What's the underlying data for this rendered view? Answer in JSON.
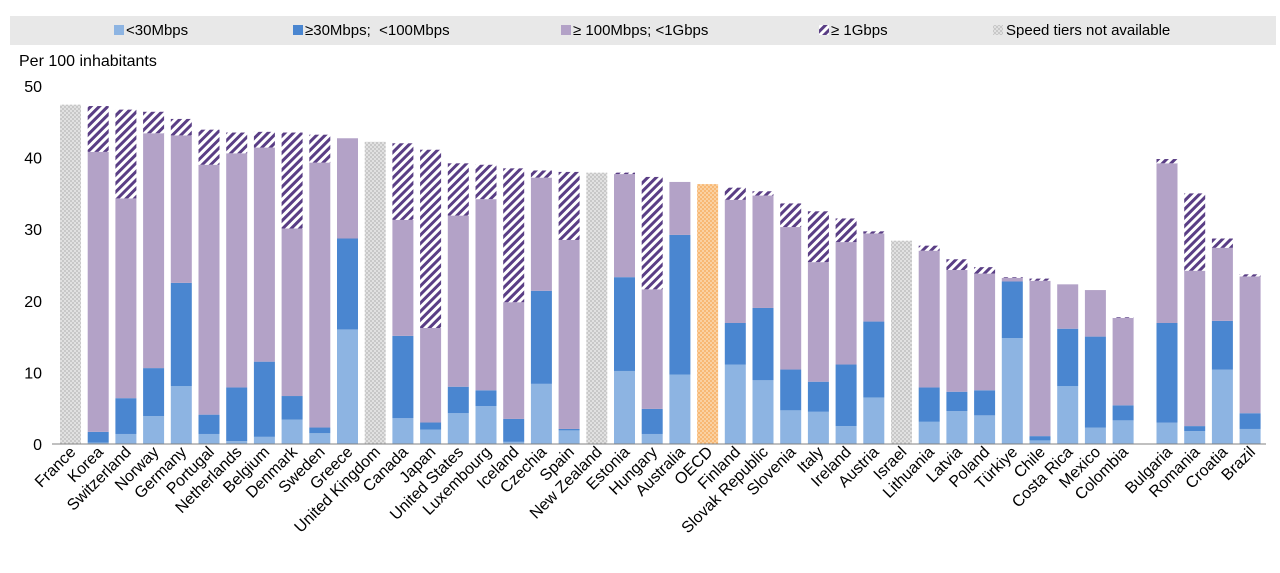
{
  "chart_data": {
    "type": "bar",
    "stacked": true,
    "unit_label": "Per 100 inhabitants",
    "ylim": [
      0,
      50
    ],
    "yticks": [
      0,
      10,
      20,
      30,
      40,
      50
    ],
    "grid": false,
    "legend_position": "top",
    "series": [
      {
        "name": "<30Mbps",
        "color": "#8DB4E2"
      },
      {
        "name": "≥30Mbps;  <100Mbps",
        "color": "#4A86D0"
      },
      {
        "name": "≥ 100Mbps; <1Gbps",
        "color": "#B3A2C7"
      },
      {
        "name": "≥ 1Gbps",
        "color": "#5A3E85",
        "pattern": "diagonal-hatch"
      },
      {
        "name": "Speed tiers not available",
        "color": "#B8B8B8",
        "pattern": "dots"
      }
    ],
    "categories": [
      {
        "name": "France",
        "values": [
          0,
          0,
          0,
          0
        ],
        "na": 47.4
      },
      {
        "name": "Korea",
        "values": [
          0.2,
          1.5,
          39.1,
          6.4
        ]
      },
      {
        "name": "Switzerland",
        "values": [
          1.4,
          5.0,
          27.9,
          12.4
        ]
      },
      {
        "name": "Norway",
        "values": [
          3.9,
          6.7,
          32.8,
          3.0
        ]
      },
      {
        "name": "Germany",
        "values": [
          8.1,
          14.4,
          20.6,
          2.3
        ]
      },
      {
        "name": "Portugal",
        "values": [
          1.4,
          2.7,
          34.9,
          4.9
        ]
      },
      {
        "name": "Netherlands",
        "values": [
          0.4,
          7.5,
          32.7,
          2.9
        ]
      },
      {
        "name": "Belgium",
        "values": [
          1.0,
          10.5,
          29.9,
          2.2
        ]
      },
      {
        "name": "Denmark",
        "values": [
          3.4,
          3.3,
          23.4,
          13.4
        ]
      },
      {
        "name": "Sweden",
        "values": [
          1.5,
          0.8,
          37.0,
          3.9
        ]
      },
      {
        "name": "Greece",
        "values": [
          16.0,
          12.7,
          14.0,
          0
        ]
      },
      {
        "name": "United Kingdom",
        "values": [
          0,
          0,
          0,
          0
        ],
        "na": 42.2
      },
      {
        "name": "Canada",
        "values": [
          3.6,
          11.5,
          16.2,
          10.7
        ]
      },
      {
        "name": "Japan",
        "values": [
          2.0,
          1.0,
          13.2,
          24.9
        ]
      },
      {
        "name": "United States",
        "values": [
          4.3,
          3.7,
          23.9,
          7.3
        ]
      },
      {
        "name": "Luxembourg",
        "values": [
          5.3,
          2.2,
          26.7,
          4.8
        ]
      },
      {
        "name": "Iceland",
        "values": [
          0.3,
          3.2,
          16.3,
          18.7
        ]
      },
      {
        "name": "Czechia",
        "values": [
          8.4,
          13.0,
          15.8,
          1.0
        ]
      },
      {
        "name": "Spain",
        "values": [
          1.9,
          0.2,
          26.4,
          9.5
        ]
      },
      {
        "name": "New Zealand",
        "values": [
          0,
          0,
          0,
          0
        ],
        "na": 37.9
      },
      {
        "name": "Estonia",
        "values": [
          10.2,
          13.1,
          14.4,
          0.2
        ]
      },
      {
        "name": "Hungary",
        "values": [
          1.4,
          3.5,
          16.7,
          15.7
        ]
      },
      {
        "name": "Australia",
        "values": [
          9.7,
          19.5,
          7.4,
          0
        ]
      },
      {
        "name": "OECD",
        "values": [
          0,
          0,
          0,
          0
        ],
        "na": 36.3,
        "na_color": "#F8C080"
      },
      {
        "name": "Finland",
        "values": [
          11.1,
          5.8,
          17.2,
          1.7
        ]
      },
      {
        "name": "Slovak Republic",
        "values": [
          8.9,
          10.1,
          15.7,
          0.6
        ]
      },
      {
        "name": "Slovenia",
        "values": [
          4.7,
          5.7,
          19.9,
          3.3
        ]
      },
      {
        "name": "Italy",
        "values": [
          4.5,
          4.2,
          16.7,
          7.1
        ]
      },
      {
        "name": "Ireland",
        "values": [
          2.5,
          8.6,
          17.1,
          3.3
        ]
      },
      {
        "name": "Austria",
        "values": [
          6.5,
          10.6,
          12.3,
          0.3
        ]
      },
      {
        "name": "Israel",
        "values": [
          0,
          0,
          0,
          0
        ],
        "na": 28.4
      },
      {
        "name": "Lithuania",
        "values": [
          3.1,
          4.8,
          19.1,
          0.7
        ]
      },
      {
        "name": "Latvia",
        "values": [
          4.6,
          2.7,
          17.0,
          1.5
        ]
      },
      {
        "name": "Poland",
        "values": [
          4.0,
          3.5,
          16.3,
          0.9
        ]
      },
      {
        "name": "Türkiye",
        "values": [
          14.8,
          7.9,
          0.5,
          0.1
        ]
      },
      {
        "name": "Chile",
        "values": [
          0.5,
          0.6,
          21.7,
          0.3
        ]
      },
      {
        "name": "Costa Rica",
        "values": [
          8.1,
          8.0,
          6.2,
          0
        ]
      },
      {
        "name": "Mexico",
        "values": [
          2.3,
          12.7,
          6.5,
          0
        ]
      },
      {
        "name": "Colombia",
        "values": [
          3.3,
          2.1,
          12.2,
          0.1
        ]
      },
      {
        "name": "Bulgaria",
        "values": [
          3.0,
          13.9,
          22.3,
          0.6
        ],
        "gap_before": true
      },
      {
        "name": "Romania",
        "values": [
          1.8,
          0.7,
          21.7,
          10.8
        ]
      },
      {
        "name": "Croatia",
        "values": [
          10.4,
          6.8,
          10.2,
          1.3
        ]
      },
      {
        "name": "Brazil",
        "values": [
          2.1,
          2.2,
          19.1,
          0.3
        ]
      }
    ]
  }
}
